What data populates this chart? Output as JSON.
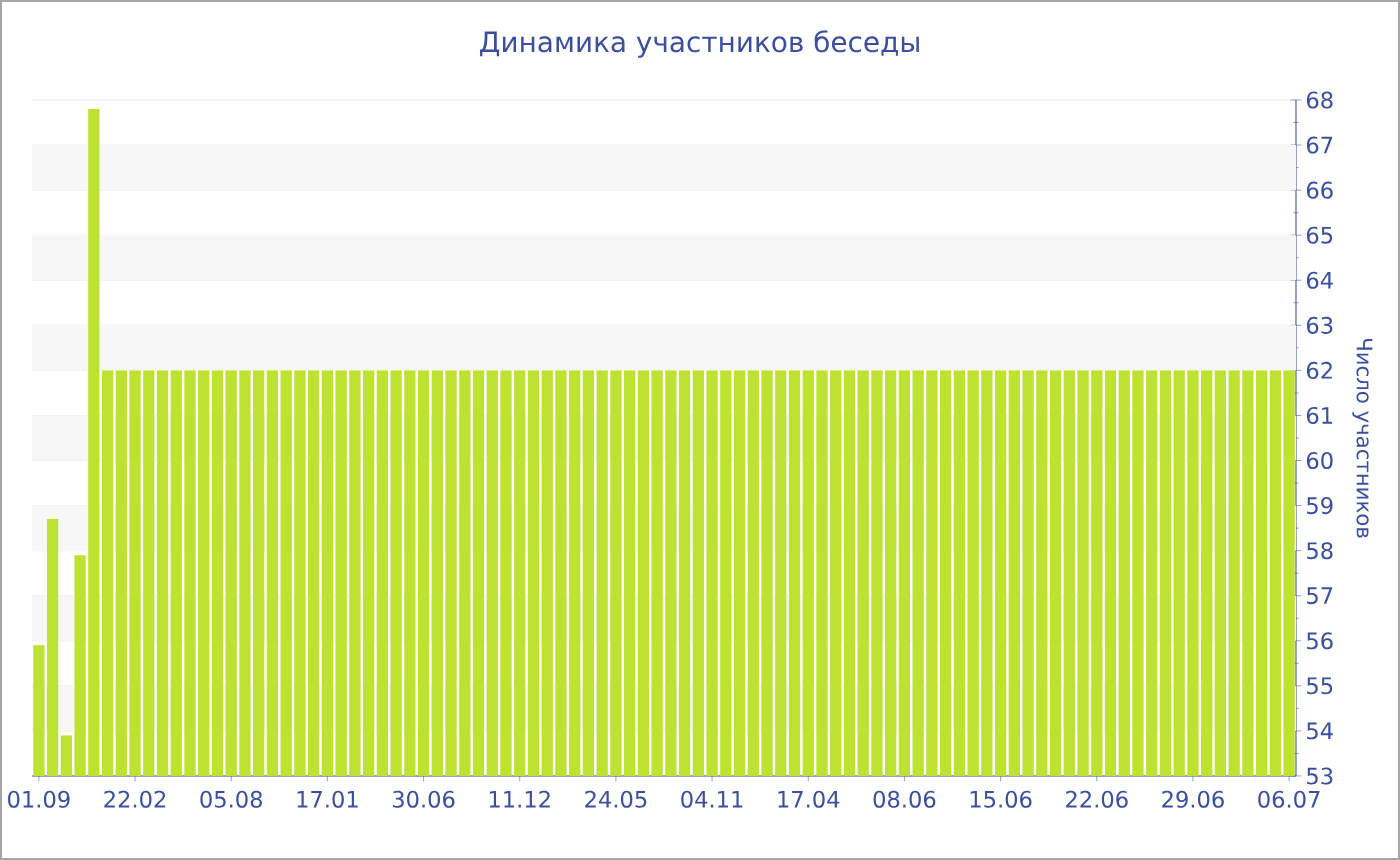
{
  "chart_data": {
    "type": "bar",
    "title": "Динамика участников беседы",
    "ylabel": "Число участников",
    "categories": [
      "01.09",
      null,
      null,
      null,
      null,
      null,
      null,
      "22.02",
      null,
      null,
      null,
      null,
      null,
      null,
      "05.08",
      null,
      null,
      null,
      null,
      null,
      null,
      "17.01",
      null,
      null,
      null,
      null,
      null,
      null,
      "30.06",
      null,
      null,
      null,
      null,
      null,
      null,
      "11.12",
      null,
      null,
      null,
      null,
      null,
      null,
      "24.05",
      null,
      null,
      null,
      null,
      null,
      null,
      "04.11",
      null,
      null,
      null,
      null,
      null,
      null,
      "17.04",
      null,
      null,
      null,
      null,
      null,
      null,
      "08.06",
      null,
      null,
      null,
      null,
      null,
      null,
      "15.06",
      null,
      null,
      null,
      null,
      null,
      null,
      "22.06",
      null,
      null,
      null,
      null,
      null,
      null,
      "29.06",
      null,
      null,
      null,
      null,
      null,
      null,
      "06.07"
    ],
    "values": [
      55.9,
      58.7,
      53.9,
      57.9,
      67.8,
      62,
      62,
      62,
      62,
      62,
      62,
      62,
      62,
      62,
      62,
      62,
      62,
      62,
      62,
      62,
      62,
      62,
      62,
      62,
      62,
      62,
      62,
      62,
      62,
      62,
      62,
      62,
      62,
      62,
      62,
      62,
      62,
      62,
      62,
      62,
      62,
      62,
      62,
      62,
      62,
      62,
      62,
      62,
      62,
      62,
      62,
      62,
      62,
      62,
      62,
      62,
      62,
      62,
      62,
      62,
      62,
      62,
      62,
      62,
      62,
      62,
      62,
      62,
      62,
      62,
      62,
      62,
      62,
      62,
      62,
      62,
      62,
      62,
      62,
      62,
      62,
      62,
      62,
      62,
      62,
      62,
      62,
      62,
      62,
      62,
      62,
      62
    ],
    "color": "#bde22f",
    "ylim": [
      53,
      68
    ],
    "yticks": [
      53,
      54,
      55,
      56,
      57,
      58,
      59,
      60,
      61,
      62,
      63,
      64,
      65,
      66,
      67,
      68
    ],
    "grid": "y"
  }
}
